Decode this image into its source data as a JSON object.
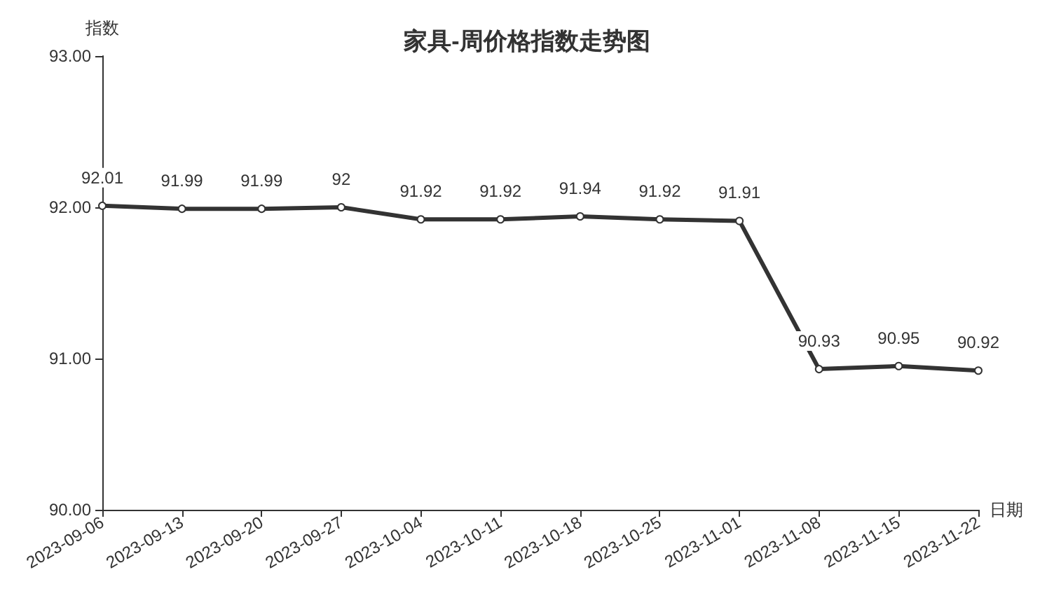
{
  "chart_data": {
    "type": "line",
    "title": "家具-周价格指数走势图",
    "xlabel": "日期",
    "ylabel": "指数",
    "categories": [
      "2023-09-06",
      "2023-09-13",
      "2023-09-20",
      "2023-09-27",
      "2023-10-04",
      "2023-10-11",
      "2023-10-18",
      "2023-10-25",
      "2023-11-01",
      "2023-11-08",
      "2023-11-15",
      "2023-11-22"
    ],
    "series": [
      {
        "color": "#333333",
        "values": [
          92.01,
          91.99,
          91.99,
          92,
          91.92,
          91.92,
          91.94,
          91.92,
          91.91,
          90.93,
          90.95,
          90.92
        ]
      }
    ],
    "ylim": [
      90,
      93
    ],
    "yticks": [
      {
        "value": 90,
        "label": "90.00"
      },
      {
        "value": 91,
        "label": "91.00"
      },
      {
        "value": 92,
        "label": "92.00"
      },
      {
        "value": 93,
        "label": "93.00"
      }
    ],
    "grid": false,
    "marker": "circle",
    "line_style": "solid",
    "data_labels": true
  }
}
